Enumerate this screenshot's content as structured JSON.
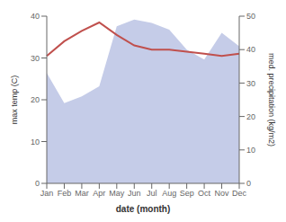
{
  "chart_data": {
    "type": "line",
    "xlabel": "date (month)",
    "ylabel": "max temp (C)",
    "y2label": "med. precipitation (kg/m2)",
    "categories": [
      "Jan",
      "Feb",
      "Mar",
      "Apr",
      "May",
      "Jun",
      "Jul",
      "Aug",
      "Sep",
      "Oct",
      "Nov",
      "Dec"
    ],
    "series": [
      {
        "type": "area",
        "axis": "y2",
        "color": "#c5cce8",
        "values": [
          33,
          24,
          26,
          29,
          47,
          49,
          48,
          46,
          40,
          37,
          45,
          41
        ]
      },
      {
        "type": "line",
        "color": "#c0504d",
        "values": [
          30.5,
          34.0,
          36.5,
          38.5,
          35.5,
          33.0,
          32.0,
          32.0,
          31.5,
          31.0,
          30.5,
          31.0
        ]
      }
    ],
    "ylim": [
      0,
      40
    ],
    "yticks": [
      0,
      10,
      20,
      30,
      40
    ],
    "y2lim": [
      0,
      50
    ],
    "y2ticks": [
      0,
      10,
      20,
      30,
      40,
      50
    ],
    "grid": false
  }
}
